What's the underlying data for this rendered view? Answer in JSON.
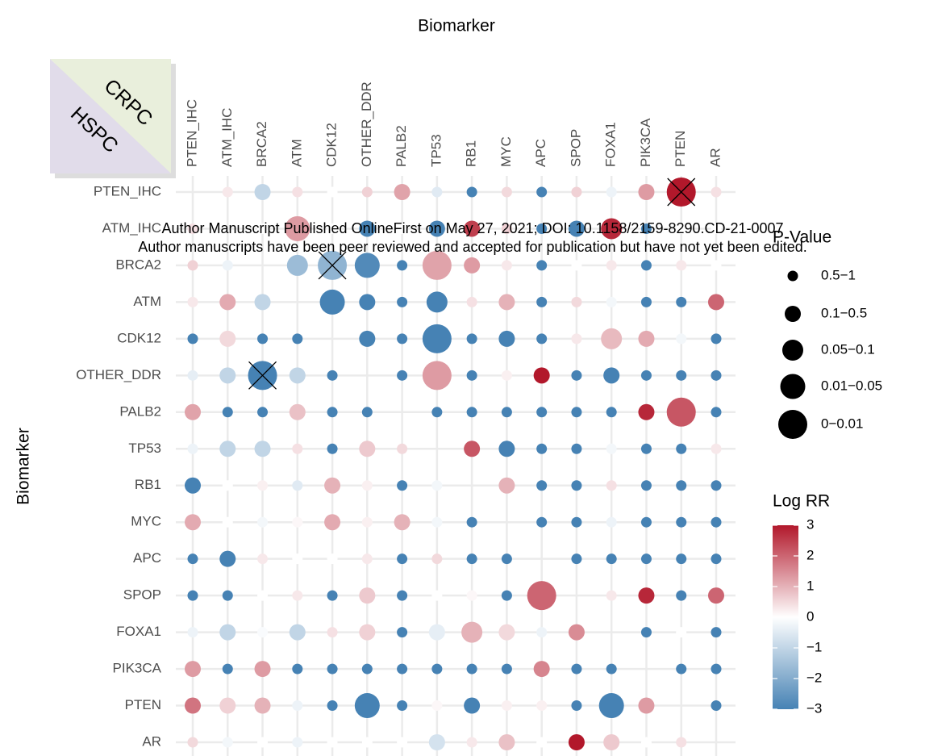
{
  "chart_data": {
    "type": "bubble_matrix",
    "x_label": "Biomarker",
    "y_label": "Biomarker",
    "categories": [
      "PTEN_IHC",
      "ATM_IHC",
      "BRCA2",
      "ATM",
      "CDK12",
      "OTHER_DDR",
      "PALB2",
      "TP53",
      "RB1",
      "MYC",
      "APC",
      "SPOP",
      "FOXA1",
      "PIK3CA",
      "PTEN",
      "AR"
    ],
    "values": [
      [
        null,
        0.3,
        -1,
        0.4,
        0,
        0.6,
        1.2,
        -0.5,
        -3,
        0.5,
        -3,
        0.6,
        -0.3,
        1.3,
        3,
        0.4
      ],
      [
        0.4,
        null,
        0,
        1.3,
        0,
        -3,
        0,
        -3,
        2.5,
        0.6,
        -3,
        -3,
        2.8,
        -3,
        0,
        0
      ],
      [
        0.6,
        -0.3,
        null,
        -1.6,
        -1.8,
        -2.8,
        -3,
        1.2,
        1.3,
        0.3,
        -3,
        0,
        0.3,
        -3,
        0.3,
        0
      ],
      [
        0.3,
        1.1,
        -1,
        null,
        -3,
        -3,
        -3,
        -3,
        0.4,
        1,
        -3,
        0.5,
        -0.2,
        -3,
        -3,
        2
      ],
      [
        -3,
        0.5,
        -3,
        -3,
        null,
        -3,
        -3,
        -3,
        -3,
        -3,
        -3,
        0.3,
        0.9,
        1.1,
        -0.2,
        -3
      ],
      [
        -0.4,
        -1,
        -3,
        -1,
        -3,
        null,
        -3,
        1.3,
        -3,
        0.2,
        3,
        -3,
        -3,
        -3,
        -3,
        -3
      ],
      [
        1.2,
        -3,
        -3,
        0.8,
        -3,
        -3,
        null,
        -3,
        -3,
        -3,
        -3,
        -3,
        -3,
        2.8,
        2.2,
        -3
      ],
      [
        -0.3,
        -1,
        -1,
        0.4,
        -3,
        0.7,
        0.5,
        null,
        2.2,
        -3,
        -3,
        -3,
        -0.2,
        -3,
        -3,
        0.3
      ],
      [
        -3,
        0,
        0.2,
        -0.5,
        1,
        0.2,
        -3,
        -0.2,
        null,
        1,
        -3,
        -3,
        0.4,
        -3,
        -3,
        -3
      ],
      [
        1.1,
        0,
        -0.2,
        0.1,
        1.1,
        0.2,
        1,
        -0.2,
        -3,
        null,
        -3,
        -3,
        -0.3,
        -3,
        -3,
        -3
      ],
      [
        -3,
        -3,
        0.3,
        0,
        0,
        0.3,
        -3,
        0.5,
        -3,
        -3,
        null,
        -3,
        -3,
        -3,
        -3,
        -3
      ],
      [
        -3,
        -3,
        0,
        0.3,
        -3,
        0.7,
        -3,
        0,
        0.1,
        -3,
        2,
        null,
        0.3,
        2.8,
        -3,
        2
      ],
      [
        -0.3,
        -1,
        -0.1,
        -1,
        0.4,
        0.6,
        -3,
        -0.4,
        1,
        0.5,
        -0.3,
        1.5,
        null,
        -3,
        0,
        -3
      ],
      [
        1.3,
        -3,
        1.3,
        -3,
        -3,
        -3,
        -3,
        -3,
        -3,
        -3,
        1.6,
        -3,
        -3,
        null,
        -3,
        -3
      ],
      [
        1.8,
        0.6,
        1,
        -0.3,
        -3,
        -3,
        -3,
        0.1,
        -3,
        0.2,
        0.2,
        -3,
        -3,
        1.3,
        null,
        -3
      ],
      [
        0.5,
        -0.2,
        0,
        -0.3,
        0,
        0,
        0,
        -0.7,
        0.3,
        0.8,
        0,
        3,
        0.7,
        0,
        0.4,
        null
      ]
    ],
    "p_class": [
      [
        null,
        0,
        1,
        0,
        0,
        0,
        1,
        0,
        0,
        0,
        0,
        0,
        0,
        1,
        4,
        0
      ],
      [
        0,
        null,
        0,
        3,
        0,
        1,
        0,
        1,
        1,
        0,
        0,
        1,
        2,
        0,
        0,
        0
      ],
      [
        0,
        0,
        null,
        2,
        4,
        3,
        0,
        4,
        1,
        0,
        0,
        0,
        0,
        0,
        0,
        0
      ],
      [
        0,
        1,
        1,
        null,
        3,
        1,
        0,
        2,
        0,
        1,
        0,
        0,
        0,
        0,
        0,
        1
      ],
      [
        0,
        1,
        0,
        0,
        null,
        1,
        0,
        4,
        0,
        1,
        0,
        0,
        2,
        1,
        0,
        0
      ],
      [
        0,
        1,
        4,
        1,
        0,
        null,
        0,
        4,
        0,
        0,
        1,
        0,
        1,
        0,
        0,
        0
      ],
      [
        1,
        0,
        0,
        1,
        0,
        0,
        null,
        0,
        0,
        0,
        0,
        0,
        0,
        1,
        4,
        0
      ],
      [
        0,
        1,
        1,
        0,
        0,
        1,
        0,
        null,
        1,
        1,
        0,
        0,
        0,
        0,
        0,
        0
      ],
      [
        1,
        0,
        0,
        0,
        1,
        0,
        0,
        0,
        null,
        1,
        0,
        0,
        0,
        0,
        0,
        0
      ],
      [
        1,
        0,
        0,
        0,
        1,
        0,
        1,
        0,
        0,
        null,
        0,
        0,
        0,
        0,
        0,
        0
      ],
      [
        0,
        1,
        0,
        0,
        0,
        0,
        0,
        0,
        0,
        0,
        null,
        0,
        0,
        0,
        0,
        0
      ],
      [
        0,
        0,
        0,
        0,
        0,
        1,
        0,
        0,
        0,
        0,
        4,
        null,
        0,
        1,
        0,
        1
      ],
      [
        0,
        1,
        0,
        1,
        0,
        1,
        0,
        1,
        2,
        1,
        0,
        1,
        null,
        0,
        0,
        0
      ],
      [
        1,
        0,
        1,
        0,
        0,
        0,
        0,
        0,
        0,
        0,
        1,
        0,
        0,
        null,
        0,
        0
      ],
      [
        1,
        1,
        1,
        0,
        0,
        3,
        0,
        0,
        1,
        0,
        0,
        0,
        3,
        1,
        null,
        0
      ],
      [
        0,
        0,
        0,
        0,
        0,
        0,
        0,
        1,
        0,
        1,
        0,
        1,
        1,
        0,
        0,
        null
      ]
    ],
    "crossed": [
      [
        0,
        14
      ],
      [
        2,
        4
      ],
      [
        5,
        2
      ]
    ],
    "size_legend": {
      "title": "P-Value",
      "labels": [
        "0.5−1",
        "0.1−0.5",
        "0.05−0.1",
        "0.01−0.05",
        "0−0.01"
      ]
    },
    "color_legend": {
      "title": "Log RR",
      "limits": [
        -3,
        3
      ],
      "ticks": [
        3,
        2,
        1,
        0,
        {
          "value": -1,
          "label": "−1"
        },
        {
          "value": -2,
          "label": "−2"
        },
        {
          "value": -3,
          "label": "−3"
        }
      ],
      "colors": [
        "#4682b4",
        "#ffffff",
        "#b2182b"
      ]
    },
    "corner_labels": {
      "upper": "CRPC",
      "lower": "HSPC"
    },
    "watermark": [
      "Author Manuscript Published OnlineFirst on May 27, 2021; DOI: 10.1158/2159-8290.CD-21-0007",
      "Author manuscripts have been peer reviewed and accepted for publication but have not yet been edited."
    ]
  }
}
